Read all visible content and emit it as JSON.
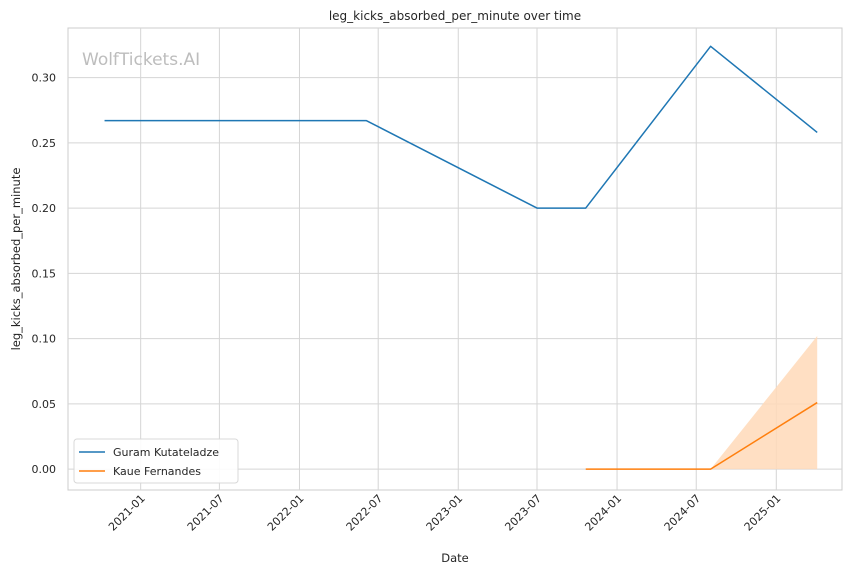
{
  "watermark": "WolfTickets.AI",
  "chart_data": {
    "type": "line",
    "title": "leg_kicks_absorbed_per_minute over time",
    "xlabel": "Date",
    "ylabel": "leg_kicks_absorbed_per_minute",
    "xlim": [
      "2020-07-18",
      "2025-06-01"
    ],
    "ylim": [
      -0.016,
      0.338
    ],
    "x_ticks": [
      "2021-01",
      "2021-07",
      "2022-01",
      "2022-07",
      "2023-01",
      "2023-07",
      "2024-01",
      "2024-07",
      "2025-01"
    ],
    "y_ticks": [
      "0.00",
      "0.05",
      "0.10",
      "0.15",
      "0.20",
      "0.25",
      "0.30"
    ],
    "grid": true,
    "legend_position": "lower-left",
    "series": [
      {
        "name": "Guram Kutateladze",
        "color": "#1f77b4",
        "points": [
          {
            "x": "2020-10-10",
            "y": 0.267
          },
          {
            "x": "2022-06-04",
            "y": 0.267
          },
          {
            "x": "2023-07-01",
            "y": 0.2
          },
          {
            "x": "2023-10-21",
            "y": 0.2
          },
          {
            "x": "2024-08-03",
            "y": 0.324
          },
          {
            "x": "2025-04-05",
            "y": 0.258
          }
        ]
      },
      {
        "name": "Kaue Fernandes",
        "color": "#ff7f0e",
        "points": [
          {
            "x": "2023-10-21",
            "y": 0.0
          },
          {
            "x": "2024-08-03",
            "y": 0.0
          },
          {
            "x": "2025-04-05",
            "y": 0.051
          }
        ],
        "band": {
          "color": "#ffd9b8",
          "points": [
            {
              "x": "2023-10-21",
              "low": 0.0,
              "high": 0.0
            },
            {
              "x": "2024-08-03",
              "low": 0.0,
              "high": 0.0
            },
            {
              "x": "2025-04-05",
              "low": 0.0,
              "high": 0.102
            }
          ]
        }
      }
    ]
  }
}
